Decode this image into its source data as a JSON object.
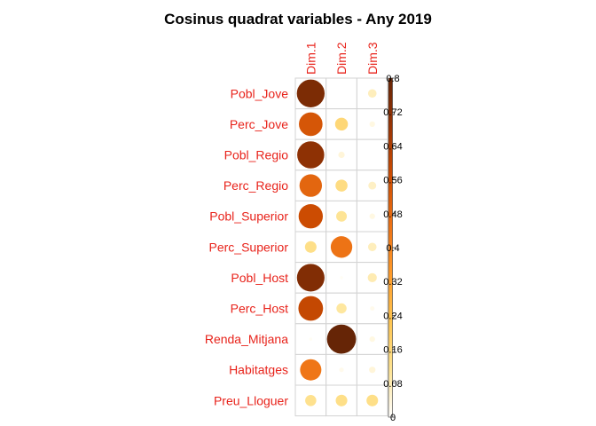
{
  "chart_data": {
    "type": "heatmap",
    "title": "Cosinus quadrat variables - Any 2019",
    "columns": [
      "Dim.1",
      "Dim.2",
      "Dim.3"
    ],
    "rows": [
      "Pobl_Jove",
      "Perc_Jove",
      "Pobl_Regio",
      "Perc_Regio",
      "Pobl_Superior",
      "Perc_Superior",
      "Pobl_Host",
      "Perc_Host",
      "Renda_Mitjana",
      "Habitatges",
      "Preu_Lloguer"
    ],
    "values": [
      [
        0.75,
        0.0,
        0.07
      ],
      [
        0.54,
        0.16,
        0.03
      ],
      [
        0.71,
        0.04,
        0.0
      ],
      [
        0.49,
        0.14,
        0.06
      ],
      [
        0.57,
        0.11,
        0.03
      ],
      [
        0.13,
        0.45,
        0.07
      ],
      [
        0.74,
        0.01,
        0.08
      ],
      [
        0.59,
        0.1,
        0.02
      ],
      [
        0.01,
        0.82,
        0.03
      ],
      [
        0.44,
        0.02,
        0.04
      ],
      [
        0.12,
        0.13,
        0.13
      ]
    ],
    "colorbar": {
      "min": 0,
      "max": 0.8,
      "ticks": [
        "0",
        "0.08",
        "0.16",
        "0.24",
        "0.32",
        "0.4",
        "0.48",
        "0.56",
        "0.64",
        "0.72",
        "0.8"
      ],
      "colors": [
        "#ffffff",
        "#fee391",
        "#fec44f",
        "#fe9929",
        "#ec7014",
        "#cc4c02",
        "#993404",
        "#662506"
      ]
    }
  }
}
